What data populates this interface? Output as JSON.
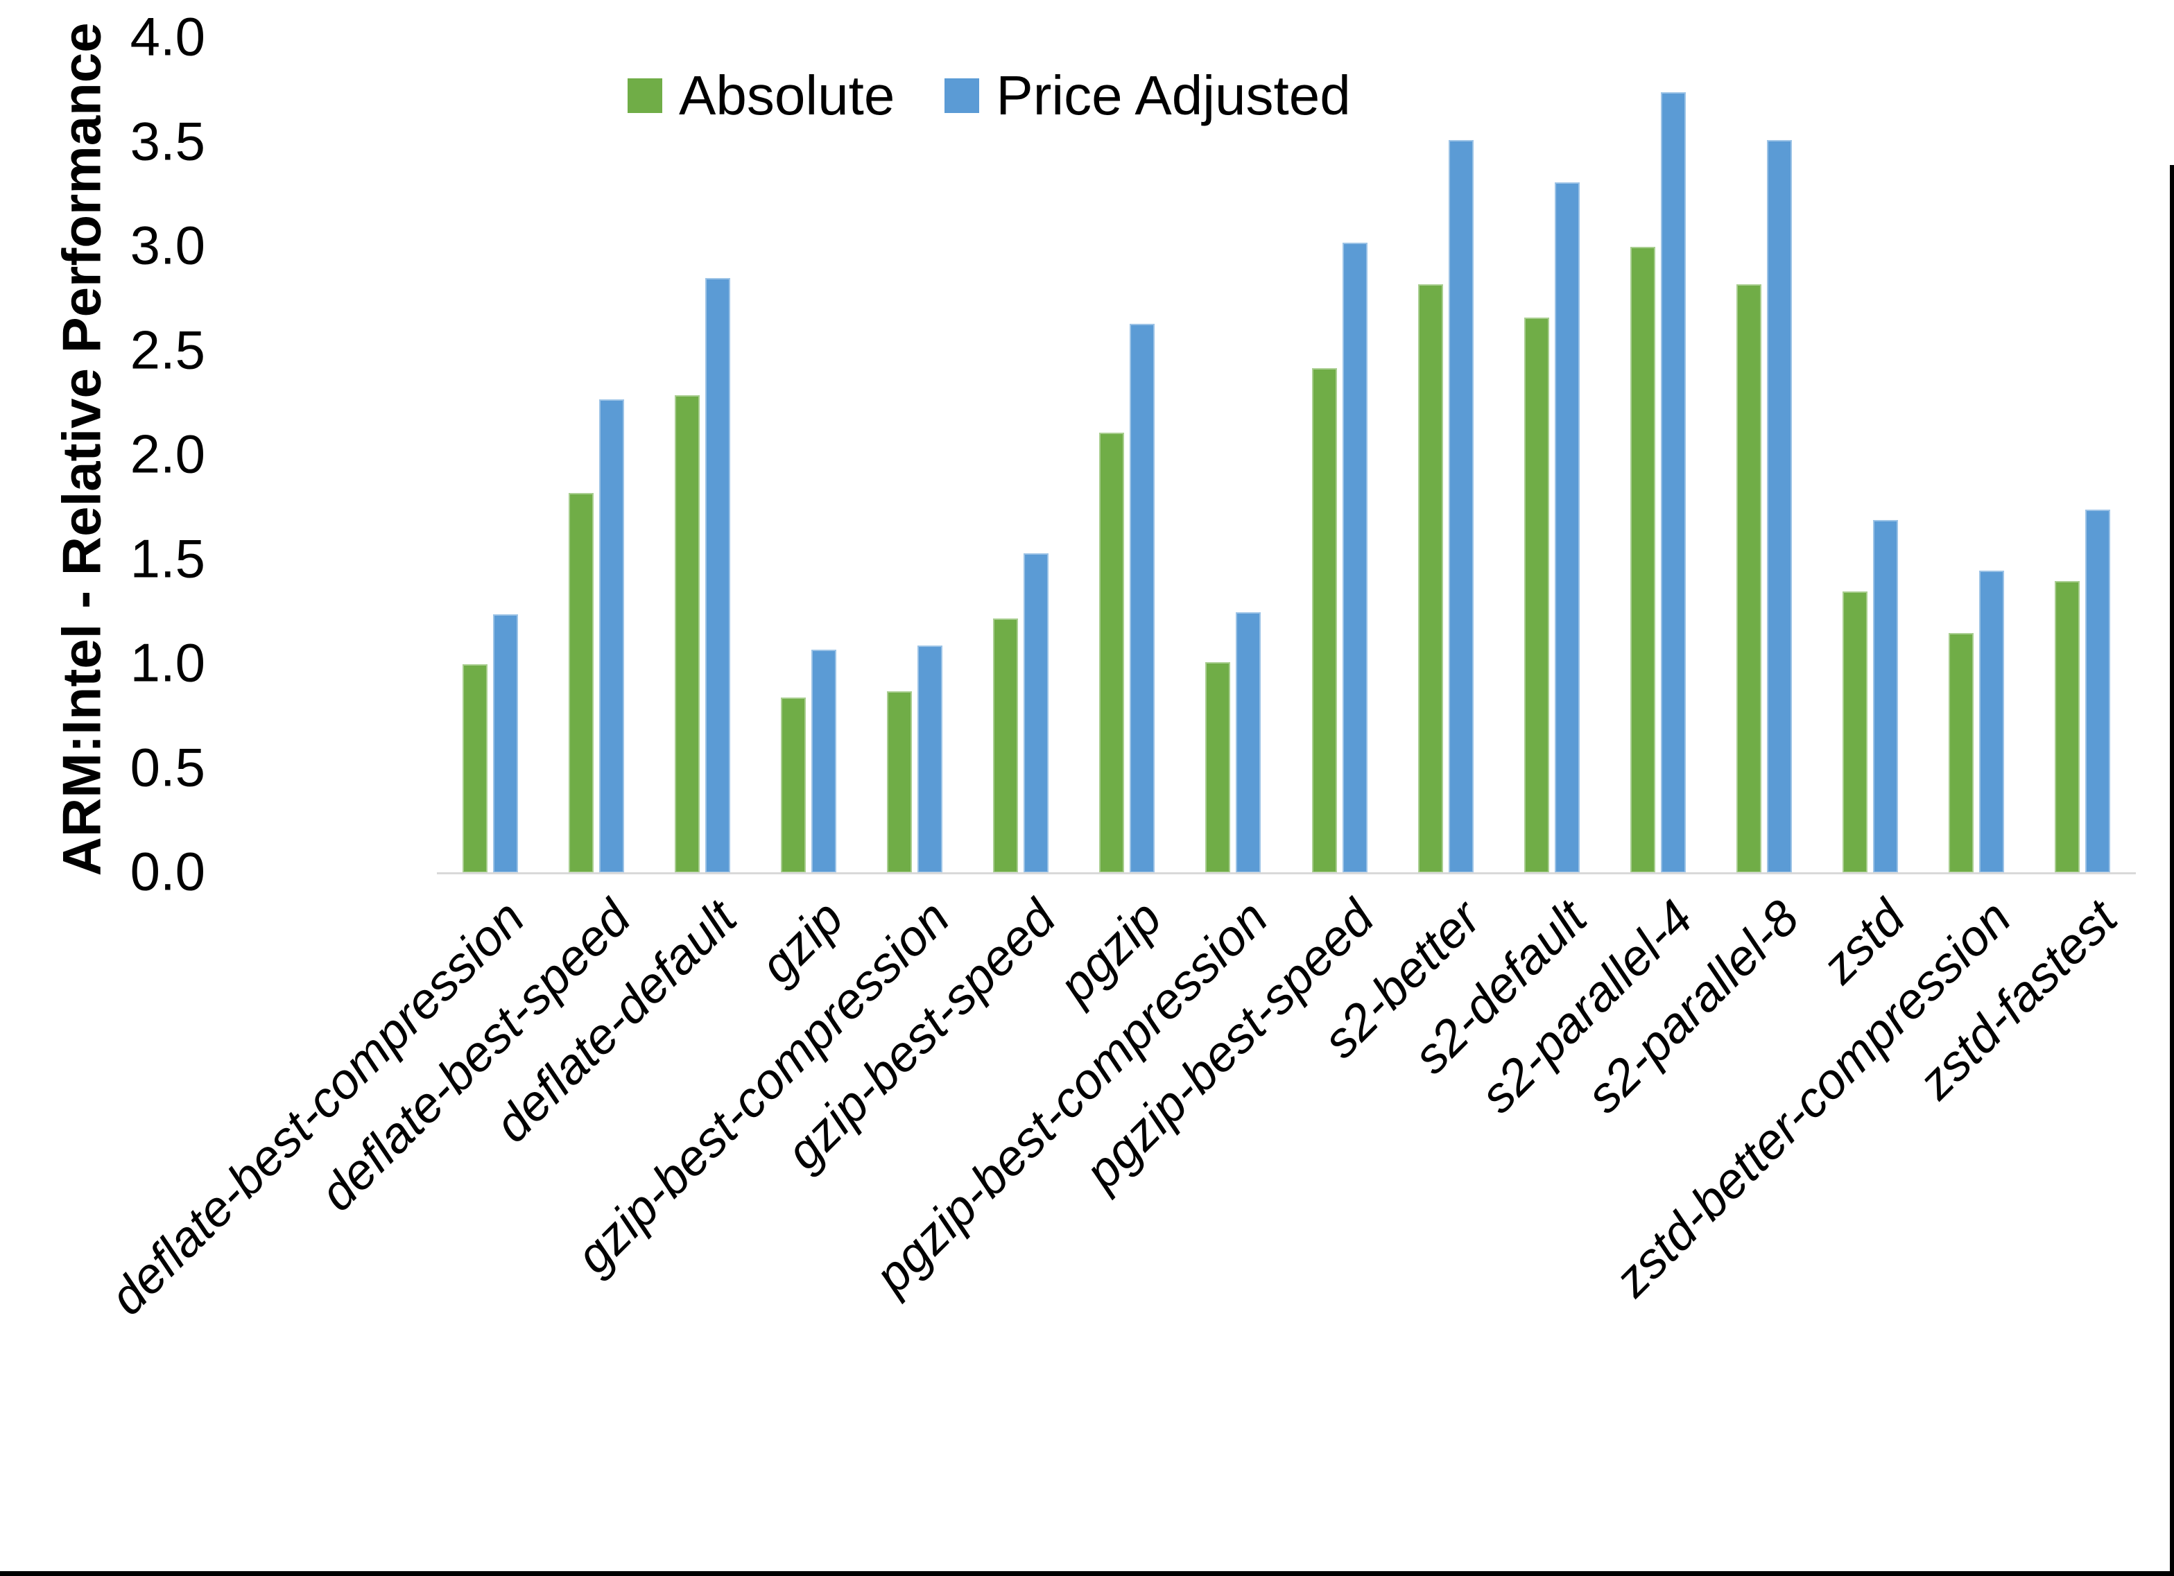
{
  "chart_data": {
    "type": "bar",
    "title": "",
    "xlabel": "",
    "ylabel": "ARM:Intel - Relative Performance",
    "ylim": [
      0.0,
      4.0
    ],
    "ytick_step": 0.5,
    "ytick_labels": [
      "0.0",
      "0.5",
      "1.0",
      "1.5",
      "2.0",
      "2.5",
      "3.0",
      "3.5",
      "4.0"
    ],
    "grid": false,
    "legend_position": "top-center",
    "categories": [
      "deflate-best-compression",
      "deflate-best-speed",
      "deflate-default",
      "gzip",
      "gzip-best-compression",
      "gzip-best-speed",
      "pgzip",
      "pgzip-best-compression",
      "pgzip-best-speed",
      "s2-better",
      "s2-default",
      "s2-parallel-4",
      "s2-parallel-8",
      "zstd",
      "zstd-better-compression",
      "zstd-fastest"
    ],
    "series": [
      {
        "name": "Absolute",
        "color": "#70AD47",
        "values": [
          1.0,
          1.82,
          2.29,
          0.84,
          0.87,
          1.22,
          2.11,
          1.01,
          2.42,
          2.82,
          2.66,
          3.0,
          2.82,
          1.35,
          1.15,
          1.4
        ]
      },
      {
        "name": "Price Adjusted",
        "color": "#5B9BD5",
        "values": [
          1.24,
          2.27,
          2.85,
          1.07,
          1.09,
          1.53,
          2.63,
          1.25,
          3.02,
          3.51,
          3.31,
          3.74,
          3.51,
          1.69,
          1.45,
          1.74
        ]
      }
    ],
    "axis_color": "#D9D9D9",
    "text_color": "#000000"
  }
}
